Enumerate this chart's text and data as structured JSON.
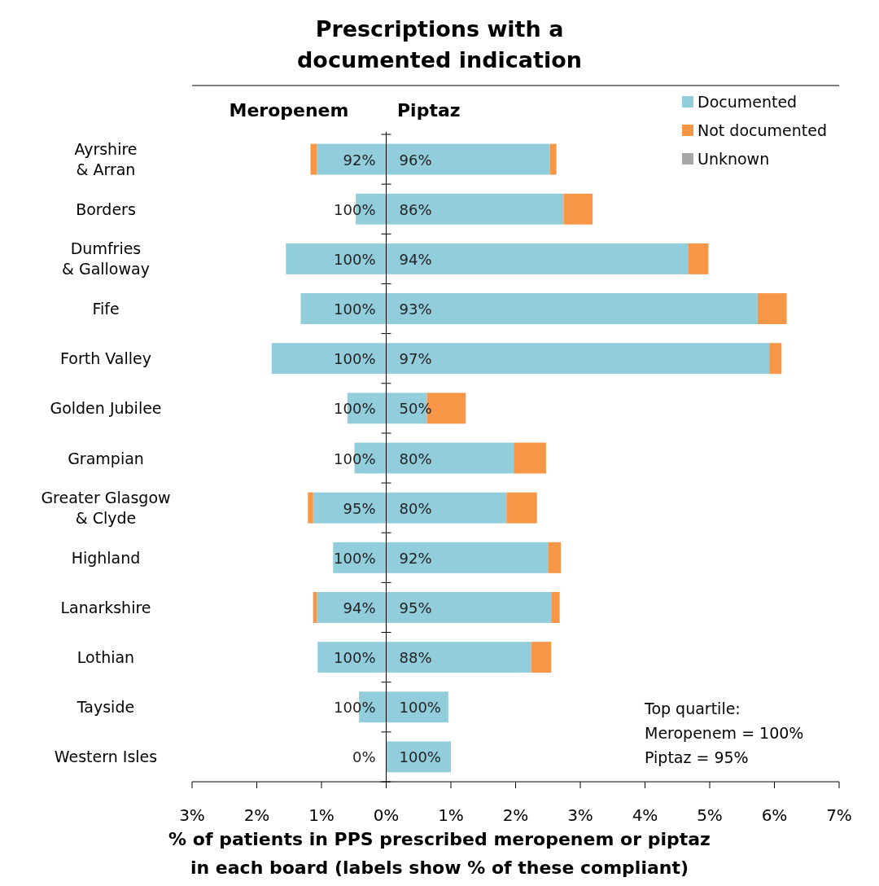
{
  "chart_data": {
    "type": "bar",
    "orientation": "horizontal",
    "stacked": true,
    "title": "Prescriptions with a\ndocumented indication",
    "xlabel": "% of patients in PPS prescribed meropenem or piptaz\nin each board (labels show % of these compliant)",
    "categories": [
      "Ayrshire\n& Arran",
      "Borders",
      "Dumfries\n& Galloway",
      "Fife",
      "Forth Valley",
      "Golden Jubilee",
      "Grampian",
      "Greater Glasgow\n& Clyde",
      "Highland",
      "Lanarkshire",
      "Lothian",
      "Tayside",
      "Western Isles"
    ],
    "xlim": [
      -3,
      7
    ],
    "xticks": [
      {
        "value": -3,
        "label": "3%"
      },
      {
        "value": -2,
        "label": "2%"
      },
      {
        "value": -1,
        "label": "1%"
      },
      {
        "value": 0,
        "label": "0%"
      },
      {
        "value": 1,
        "label": "1%"
      },
      {
        "value": 2,
        "label": "2%"
      },
      {
        "value": 3,
        "label": "3%"
      },
      {
        "value": 4,
        "label": "4%"
      },
      {
        "value": 5,
        "label": "5%"
      },
      {
        "value": 6,
        "label": "6%"
      },
      {
        "value": 7,
        "label": "7%"
      }
    ],
    "series": [
      {
        "name": "Documented",
        "color": "#92cddc",
        "values": [
          2.53,
          2.74,
          4.67,
          5.74,
          5.92,
          0.63,
          1.97,
          1.86,
          2.5,
          2.55,
          2.24,
          0.96,
          1.0
        ]
      },
      {
        "name": "Not documented",
        "color": "#f79646",
        "values": [
          0.1,
          0.45,
          0.31,
          0.45,
          0.19,
          0.6,
          0.5,
          0.47,
          0.2,
          0.13,
          0.31,
          null,
          null
        ]
      },
      {
        "name": "Unknown",
        "color": "#a6a6a6",
        "values": [
          null,
          null,
          null,
          null,
          null,
          null,
          null,
          null,
          null,
          null,
          null,
          null,
          null
        ]
      },
      {
        "color": "#92cddc",
        "values": [
          -1.07,
          -0.47,
          -1.55,
          -1.32,
          -1.77,
          -0.6,
          -0.49,
          -1.13,
          -0.82,
          -1.07,
          -1.06,
          -0.42,
          0
        ]
      },
      {
        "color": "#f79646",
        "values": [
          -0.1,
          null,
          null,
          null,
          null,
          null,
          null,
          -0.08,
          null,
          -0.06,
          null,
          null,
          null
        ]
      }
    ],
    "legend": "top right",
    "annotations": [
      "Meropenem",
      "Piptaz",
      "Top quartile:\nMeropenem = 100%\nPiptaz = 95%",
      "92%",
      "100%",
      "100%",
      "100%",
      "100%",
      "100%",
      "100%",
      "95%",
      "100%",
      "94%",
      "100%",
      "100%",
      "0%",
      "96%",
      "86%",
      "94%",
      "93%",
      "97%",
      "50%",
      "80%",
      "80%",
      "92%",
      "95%",
      "88%",
      "100%",
      "100%"
    ]
  }
}
